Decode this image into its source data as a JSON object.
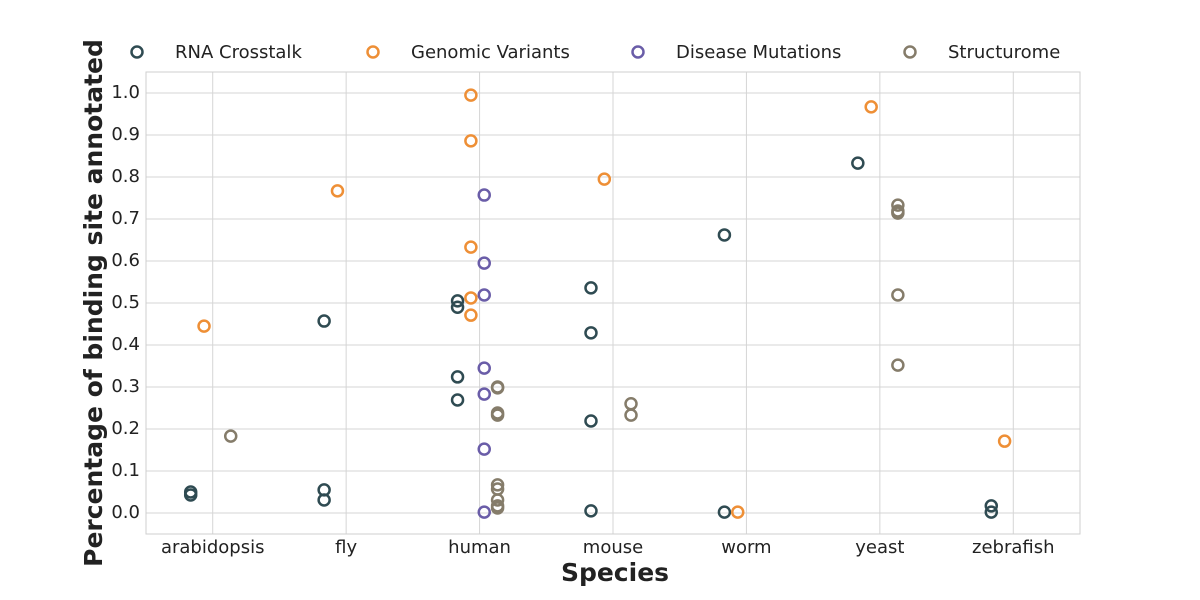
{
  "chart_data": {
    "type": "scatter",
    "x_label": "Species",
    "y_label": "Percentage of binding site annotated",
    "categories": [
      "arabidopsis",
      "fly",
      "human",
      "mouse",
      "worm",
      "yeast",
      "zebrafish"
    ],
    "ylim": [
      -0.05,
      1.05
    ],
    "yticks": [
      {
        "value": 0.0,
        "label": "0.0"
      },
      0.1,
      0.2,
      0.3,
      0.4,
      0.5,
      0.6,
      0.7,
      0.8,
      0.9,
      {
        "value": 1.0,
        "label": "1.0"
      }
    ],
    "grid": true,
    "legend": "top",
    "series": [
      {
        "name": "RNA Crosstalk",
        "color": "#2f4b52",
        "x": [
          "arabidopsis",
          "arabidopsis",
          "fly",
          "fly",
          "fly",
          "human",
          "human",
          "human",
          "human",
          "mouse",
          "mouse",
          "mouse",
          "mouse",
          "worm",
          "worm",
          "yeast",
          "zebrafish",
          "zebrafish"
        ],
        "values": [
          0.05,
          0.043,
          0.457,
          0.055,
          0.031,
          0.505,
          0.49,
          0.324,
          0.269,
          0.536,
          0.429,
          0.219,
          0.005,
          0.662,
          0.002,
          0.833,
          0.017,
          0.002
        ]
      },
      {
        "name": "Genomic Variants",
        "color": "#ee8f36",
        "x": [
          "arabidopsis",
          "fly",
          "human",
          "human",
          "human",
          "human",
          "human",
          "mouse",
          "worm",
          "yeast",
          "zebrafish"
        ],
        "values": [
          0.445,
          0.767,
          0.995,
          0.886,
          0.633,
          0.512,
          0.471,
          0.795,
          0.002,
          0.967,
          0.171
        ]
      },
      {
        "name": "Disease Mutations",
        "color": "#6a5da8",
        "x": [
          "human",
          "human",
          "human",
          "human",
          "human",
          "human",
          "human"
        ],
        "values": [
          0.757,
          0.595,
          0.519,
          0.345,
          0.283,
          0.152,
          0.002
        ]
      },
      {
        "name": "Structurome",
        "color": "#857c6a",
        "x": [
          "arabidopsis",
          "human",
          "human",
          "human",
          "human",
          "human",
          "human",
          "human",
          "human",
          "human",
          "mouse",
          "mouse",
          "yeast",
          "yeast",
          "yeast",
          "yeast",
          "yeast"
        ],
        "values": [
          0.183,
          0.3,
          0.298,
          0.238,
          0.233,
          0.067,
          0.057,
          0.031,
          0.017,
          0.012,
          0.26,
          0.233,
          0.733,
          0.719,
          0.714,
          0.519,
          0.352
        ]
      }
    ]
  }
}
